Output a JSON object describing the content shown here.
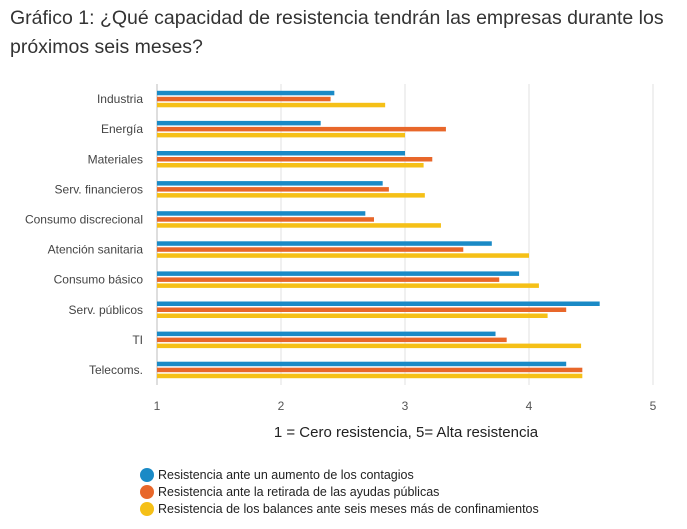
{
  "title": "Gráfico 1: ¿Qué capacidad de resistencia tendrán las empresas durante los próximos seis meses?",
  "chart_data": {
    "type": "bar",
    "orientation": "horizontal",
    "categories": [
      "Industria",
      "Energía",
      "Materiales",
      "Serv. financieros",
      "Consumo discrecional",
      "Atención sanitaria",
      "Consumo básico",
      "Serv. públicos",
      "TI",
      "Telecoms."
    ],
    "series": [
      {
        "name": "Resistencia ante un aumento de los contagios",
        "color": "#1a8ac6",
        "values": [
          2.43,
          2.32,
          3.0,
          2.82,
          2.68,
          3.7,
          3.92,
          4.57,
          3.73,
          4.3
        ]
      },
      {
        "name": "Resistencia ante la retirada de las ayudas públicas",
        "color": "#e8672a",
        "values": [
          2.4,
          3.33,
          3.22,
          2.87,
          2.75,
          3.47,
          3.76,
          4.3,
          3.82,
          4.43
        ]
      },
      {
        "name": "Resistencia de los balances ante seis meses más de confinamientos",
        "color": "#f5c017",
        "values": [
          2.84,
          3.0,
          3.15,
          3.16,
          3.29,
          4.0,
          4.08,
          4.15,
          4.42,
          4.43
        ]
      }
    ],
    "xlabel": "1 = Cero resistencia, 5= Alta resistencia",
    "xlim": [
      1,
      5
    ],
    "xticks": [
      1,
      2,
      3,
      4,
      5
    ],
    "grid": "vertical",
    "legend_position": "bottom"
  }
}
